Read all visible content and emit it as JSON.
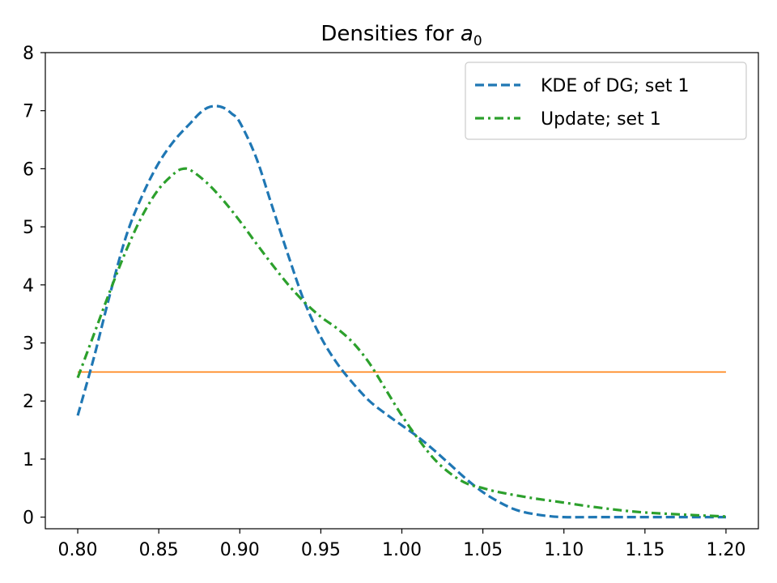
{
  "chart_data": {
    "type": "line",
    "title_main": "Densities for ",
    "title_var": "a",
    "title_sub": "0",
    "xlabel": "",
    "ylabel": "",
    "xlim": [
      0.78,
      1.22
    ],
    "ylim": [
      -0.2,
      8.0
    ],
    "xticks": [
      "0.80",
      "0.85",
      "0.90",
      "0.95",
      "1.00",
      "1.05",
      "1.10",
      "1.15",
      "1.20"
    ],
    "yticks": [
      "0",
      "1",
      "2",
      "3",
      "4",
      "5",
      "6",
      "7",
      "8"
    ],
    "legend_position": "top-right",
    "series": [
      {
        "name": "KDE of DG; set 1",
        "style": "dashed",
        "color": "#1f77b4",
        "x": [
          0.8,
          0.81,
          0.82,
          0.83,
          0.84,
          0.85,
          0.86,
          0.87,
          0.875,
          0.88,
          0.885,
          0.89,
          0.895,
          0.9,
          0.91,
          0.92,
          0.93,
          0.94,
          0.95,
          0.96,
          0.97,
          0.98,
          0.99,
          1.0,
          1.01,
          1.02,
          1.03,
          1.04,
          1.05,
          1.06,
          1.07,
          1.08,
          1.09,
          1.1,
          1.12,
          1.15,
          1.2
        ],
        "y": [
          1.75,
          2.75,
          3.85,
          4.85,
          5.55,
          6.1,
          6.5,
          6.8,
          6.95,
          7.05,
          7.08,
          7.05,
          6.95,
          6.8,
          6.2,
          5.35,
          4.5,
          3.7,
          3.1,
          2.65,
          2.3,
          2.0,
          1.78,
          1.58,
          1.38,
          1.15,
          0.9,
          0.65,
          0.43,
          0.26,
          0.13,
          0.06,
          0.02,
          0.0,
          0.0,
          0.0,
          0.0
        ]
      },
      {
        "name": "Update; set 1",
        "style": "dashdot",
        "color": "#2ca02c",
        "x": [
          0.8,
          0.81,
          0.82,
          0.83,
          0.84,
          0.85,
          0.86,
          0.865,
          0.87,
          0.88,
          0.89,
          0.9,
          0.91,
          0.92,
          0.93,
          0.94,
          0.95,
          0.96,
          0.97,
          0.98,
          0.99,
          1.0,
          1.01,
          1.02,
          1.03,
          1.04,
          1.05,
          1.06,
          1.08,
          1.1,
          1.12,
          1.15,
          1.2
        ],
        "y": [
          2.4,
          3.15,
          3.9,
          4.6,
          5.2,
          5.65,
          5.93,
          6.0,
          5.97,
          5.75,
          5.45,
          5.1,
          4.72,
          4.35,
          4.0,
          3.7,
          3.45,
          3.25,
          3.0,
          2.65,
          2.2,
          1.75,
          1.35,
          1.0,
          0.75,
          0.58,
          0.5,
          0.43,
          0.33,
          0.25,
          0.17,
          0.08,
          0.01
        ]
      },
      {
        "name": "",
        "style": "solid",
        "color": "#ff7f0e",
        "x": [
          0.8,
          1.2
        ],
        "y": [
          2.5,
          2.5
        ]
      }
    ]
  }
}
